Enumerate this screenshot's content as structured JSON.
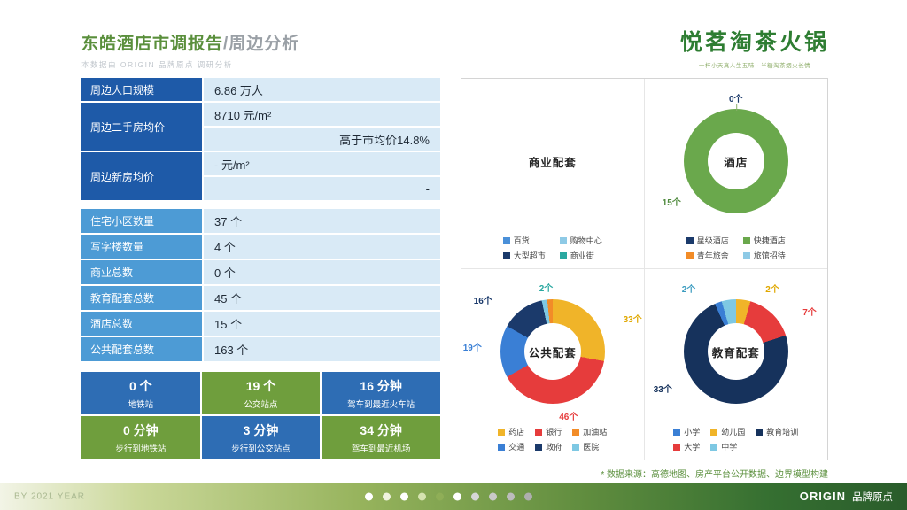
{
  "colors": {
    "title_green": "#5a8f3c",
    "table_blue_dark": "#1e5aa8",
    "table_blue_mid": "#4d9bd5",
    "table_value_bg": "#d9eaf6",
    "metric_blue": "#2e6db4",
    "metric_green": "#6f9e3d",
    "footer_green_dark": "#2a5c2b"
  },
  "header": {
    "title_main": "东皓酒店市调报告",
    "title_sub": "/周边分析",
    "subtitle": "本数据由 ORIGIN 品牌原点 调研分析",
    "logo": "悦茗淘茶火锅",
    "tagline": "一杯小天真人生五味 · 半糖淘茶烟火长情"
  },
  "stats": {
    "population": {
      "label": "周边人口规模",
      "value": "6.86 万人"
    },
    "resale_price": {
      "label": "周边二手房均价",
      "value": "8710 元/m²",
      "note": "高于市均价14.8%"
    },
    "new_price": {
      "label": "周边新房均价",
      "value": "- 元/m²",
      "note": "-"
    },
    "counts": [
      {
        "label": "住宅小区数量",
        "value": "37 个"
      },
      {
        "label": "写字楼数量",
        "value": "4 个"
      },
      {
        "label": "商业总数",
        "value": "0 个"
      },
      {
        "label": "教育配套总数",
        "value": "45 个"
      },
      {
        "label": "酒店总数",
        "value": "15 个"
      },
      {
        "label": "公共配套总数",
        "value": "163 个"
      }
    ]
  },
  "metrics": [
    {
      "value": "0 个",
      "label": "地铁站"
    },
    {
      "value": "19 个",
      "label": "公交站点"
    },
    {
      "value": "16 分钟",
      "label": "驾车到最近火车站"
    },
    {
      "value": "0 分钟",
      "label": "步行到地铁站"
    },
    {
      "value": "3 分钟",
      "label": "步行到公交站点"
    },
    {
      "value": "34 分钟",
      "label": "驾车到最近机场"
    }
  ],
  "chart_data": [
    {
      "id": "business",
      "type": "pie",
      "title": "商业配套",
      "slices": [
        {
          "label": "百货",
          "value": 0,
          "color": "#4a90d9"
        },
        {
          "label": "购物中心",
          "value": 0,
          "color": "#8ecae6"
        },
        {
          "label": "大型超市",
          "value": 0,
          "color": "#1b3a6b"
        },
        {
          "label": "商业街",
          "value": 0,
          "color": "#2aa8a0"
        }
      ],
      "legend": [
        {
          "label": "百货",
          "color": "#4a90d9"
        },
        {
          "label": "购物中心",
          "color": "#8ecae6"
        },
        {
          "label": "大型超市",
          "color": "#1b3a6b"
        },
        {
          "label": "商业街",
          "color": "#2aa8a0"
        }
      ],
      "annotations": []
    },
    {
      "id": "hotel",
      "type": "pie",
      "title": "酒店",
      "slices": [
        {
          "label": "星级酒店",
          "value": 0,
          "color": "#1b3a6b"
        },
        {
          "label": "快捷酒店",
          "value": 15,
          "color": "#6aa84c"
        },
        {
          "label": "青年旅舍",
          "value": 0,
          "color": "#f28c28"
        },
        {
          "label": "旅馆招待",
          "value": 0,
          "color": "#8ecae6"
        }
      ],
      "legend": [
        {
          "label": "星级酒店",
          "color": "#1b3a6b"
        },
        {
          "label": "快捷酒店",
          "color": "#6aa84c"
        },
        {
          "label": "青年旅舍",
          "color": "#f28c28"
        },
        {
          "label": "旅馆招待",
          "color": "#8ecae6"
        }
      ],
      "annotations": [
        {
          "text": "0个",
          "color": "#1b3a6b"
        },
        {
          "text": "15个",
          "color": "#4f8a3d"
        }
      ]
    },
    {
      "id": "public",
      "type": "pie",
      "title": "公共配套",
      "slices": [
        {
          "label": "药店",
          "value": 33,
          "color": "#f0b429"
        },
        {
          "label": "银行",
          "value": 46,
          "color": "#e63c3c"
        },
        {
          "label": "交通",
          "value": 19,
          "color": "#3a7fd5"
        },
        {
          "label": "政府",
          "value": 16,
          "color": "#1b3a6b"
        },
        {
          "label": "医院",
          "value": 2,
          "color": "#7ec8e3"
        },
        {
          "label": "加油站",
          "value": 2,
          "color": "#f28c28"
        }
      ],
      "legend": [
        {
          "label": "药店",
          "color": "#f0b429"
        },
        {
          "label": "银行",
          "color": "#e63c3c"
        },
        {
          "label": "加油站",
          "color": "#f28c28"
        },
        {
          "label": "交通",
          "color": "#3a7fd5"
        },
        {
          "label": "政府",
          "color": "#1b3a6b"
        },
        {
          "label": "医院",
          "color": "#7ec8e3"
        }
      ],
      "annotations": [
        {
          "text": "2个",
          "color": "#2aa8a0"
        },
        {
          "text": "16个",
          "color": "#1b3a6b"
        },
        {
          "text": "19个",
          "color": "#3a7fd5"
        },
        {
          "text": "33个",
          "color": "#e0a800"
        },
        {
          "text": "46个",
          "color": "#e63c3c"
        }
      ]
    },
    {
      "id": "education",
      "type": "pie",
      "title": "教育配套",
      "slices": [
        {
          "label": "幼儿园",
          "value": 2,
          "color": "#f0b429"
        },
        {
          "label": "大学",
          "value": 7,
          "color": "#e63c3c"
        },
        {
          "label": "教育培训",
          "value": 33,
          "color": "#16325c"
        },
        {
          "label": "小学",
          "value": 1,
          "color": "#3a7fd5"
        },
        {
          "label": "中学",
          "value": 2,
          "color": "#7ec8e3"
        }
      ],
      "legend": [
        {
          "label": "小学",
          "color": "#3a7fd5"
        },
        {
          "label": "幼儿园",
          "color": "#f0b429"
        },
        {
          "label": "教育培训",
          "color": "#16325c"
        },
        {
          "label": "大学",
          "color": "#e63c3c"
        },
        {
          "label": "中学",
          "color": "#7ec8e3"
        }
      ],
      "annotations": [
        {
          "text": "2个",
          "color": "#3a9bbf"
        },
        {
          "text": "2个",
          "color": "#e0a800"
        },
        {
          "text": "7个",
          "color": "#e63c3c"
        },
        {
          "text": "33个",
          "color": "#16325c"
        }
      ]
    }
  ],
  "source_note": "* 数据来源：高德地图、房产平台公开数据、边界模型构建",
  "footer": {
    "left": "BY 2021 YEAR",
    "brand_en": "ORIGIN",
    "brand_cn": "品牌原点",
    "dots": [
      "#ffffff",
      "#f0f3df",
      "#ffffff",
      "#d6e3b0",
      "#8fae57",
      "#ffffff",
      "#d6d6d6",
      "#c9c9c9",
      "#bcbcbc",
      "#aeaeae"
    ]
  }
}
